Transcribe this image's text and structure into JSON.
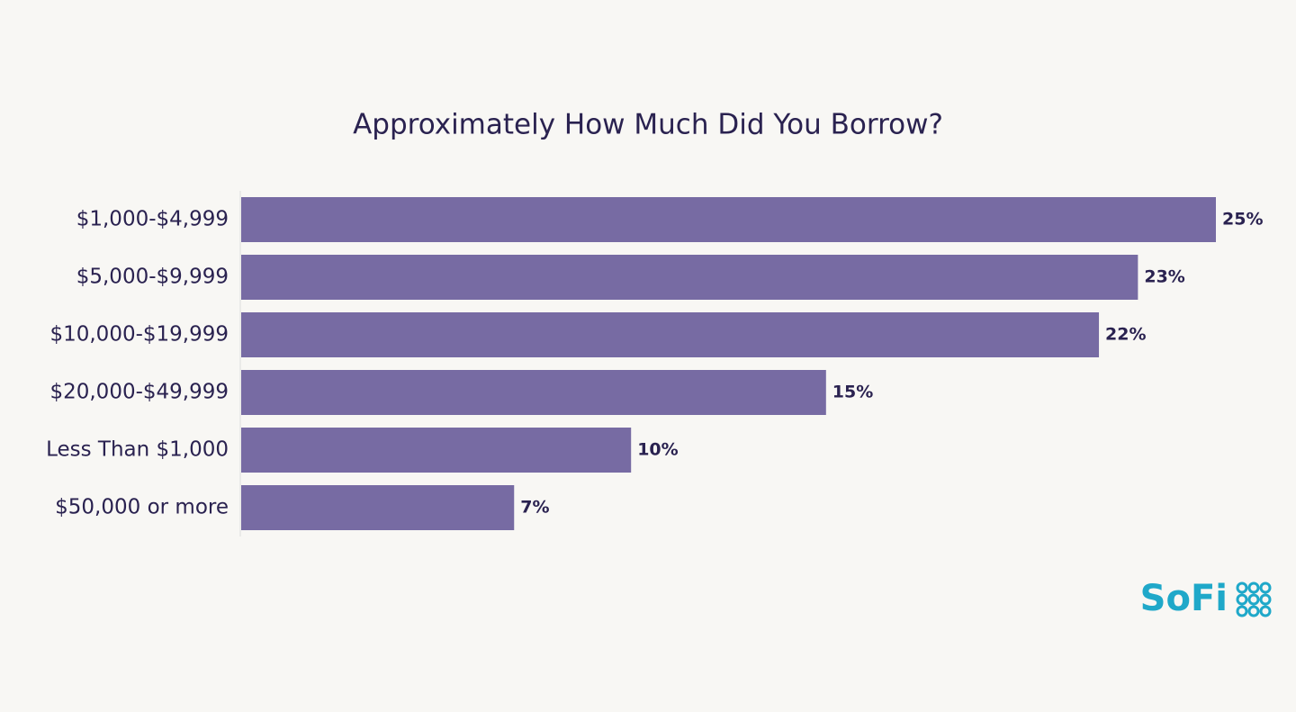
{
  "chart_data": {
    "type": "bar",
    "orientation": "horizontal",
    "title": "Approximately How Much Did You Borrow?",
    "categories": [
      "$1,000-$4,999",
      "$5,000-$9,999",
      "$10,000-$19,999",
      "$20,000-$49,999",
      "Less Than $1,000",
      "$50,000 or more"
    ],
    "values": [
      25,
      23,
      22,
      15,
      10,
      7
    ],
    "value_labels": [
      "25%",
      "23%",
      "22%",
      "15%",
      "10%",
      "7%"
    ],
    "color": "#776ba3"
  },
  "logo": "SoFi"
}
